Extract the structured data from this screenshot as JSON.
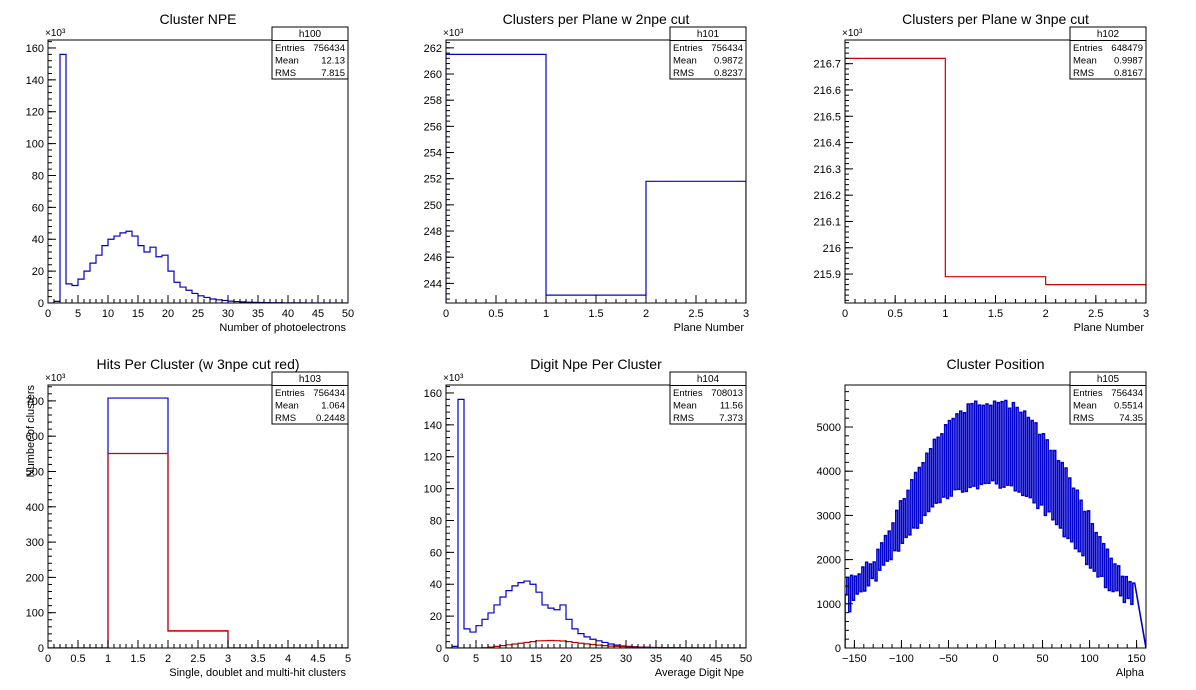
{
  "chart_data": [
    {
      "type": "bar",
      "title": "Cluster NPE",
      "xlabel": "Number of photoelectrons",
      "ylabel": "",
      "exponent_label": "×10³",
      "xlim": [
        0,
        50
      ],
      "ylim": [
        0,
        165000
      ],
      "xticks": [
        0,
        5,
        10,
        15,
        20,
        25,
        30,
        35,
        40,
        45,
        50
      ],
      "xtick_labels": [
        "0",
        "5",
        "10",
        "15",
        "20",
        "25",
        "30",
        "35",
        "40",
        "45",
        "50"
      ],
      "yticks": [
        0,
        20000,
        40000,
        60000,
        80000,
        100000,
        120000,
        140000,
        160000
      ],
      "ytick_labels": [
        "0",
        "20",
        "40",
        "60",
        "80",
        "100",
        "120",
        "140",
        "160"
      ],
      "stats": {
        "name": "h100",
        "rows": [
          [
            "Entries",
            "756434"
          ],
          [
            "Mean",
            "12.13"
          ],
          [
            "RMS",
            "7.815"
          ]
        ]
      },
      "bin_edges": [
        0,
        1,
        2,
        3,
        4,
        5,
        6,
        7,
        8,
        9,
        10,
        11,
        12,
        13,
        14,
        15,
        16,
        17,
        18,
        19,
        20,
        21,
        22,
        23,
        24,
        25,
        26,
        27,
        28,
        29,
        30,
        31,
        32,
        33,
        34,
        35,
        36,
        37,
        38,
        39,
        40,
        41,
        42,
        43,
        44,
        45,
        46,
        47,
        48,
        49,
        50
      ],
      "series": [
        {
          "color": "#0000cc",
          "values": [
            0,
            1000,
            156000,
            12000,
            11000,
            15000,
            20000,
            25000,
            30000,
            36000,
            40000,
            42000,
            44000,
            45000,
            42000,
            36000,
            32000,
            35000,
            29000,
            30000,
            20000,
            13000,
            10000,
            8000,
            6000,
            4500,
            3500,
            2500,
            2000,
            1600,
            1200,
            900,
            700,
            500,
            400,
            300,
            250,
            200,
            150,
            120,
            100,
            80,
            60,
            50,
            40,
            30,
            20,
            15,
            10,
            5
          ]
        }
      ]
    },
    {
      "type": "bar",
      "title": "Clusters per Plane w 2npe cut",
      "xlabel": "Plane Number",
      "ylabel": "",
      "exponent_label": "×10³",
      "xlim": [
        0,
        3
      ],
      "ylim": [
        242500,
        262600
      ],
      "xticks": [
        0,
        0.5,
        1,
        1.5,
        2,
        2.5,
        3
      ],
      "xtick_labels": [
        "0",
        "0.5",
        "1",
        "1.5",
        "2",
        "2.5",
        "3"
      ],
      "yticks": [
        244000,
        246000,
        248000,
        250000,
        252000,
        254000,
        256000,
        258000,
        260000,
        262000
      ],
      "ytick_labels": [
        "244",
        "246",
        "248",
        "250",
        "252",
        "254",
        "256",
        "258",
        "260",
        "262"
      ],
      "stats": {
        "name": "h101",
        "rows": [
          [
            "Entries",
            "756434"
          ],
          [
            "Mean",
            "0.9872"
          ],
          [
            "RMS",
            "0.8237"
          ]
        ]
      },
      "bin_edges": [
        0,
        1,
        2,
        3
      ],
      "series": [
        {
          "color": "#0000cc",
          "values": [
            261500,
            243100,
            251800
          ]
        }
      ]
    },
    {
      "type": "bar",
      "title": "Clusters per Plane w 3npe cut",
      "xlabel": "Plane Number",
      "ylabel": "",
      "exponent_label": "×10³",
      "xlim": [
        0,
        3
      ],
      "ylim": [
        215790,
        216790
      ],
      "xticks": [
        0,
        0.5,
        1,
        1.5,
        2,
        2.5,
        3
      ],
      "xtick_labels": [
        "0",
        "0.5",
        "1",
        "1.5",
        "2",
        "2.5",
        "3"
      ],
      "yticks": [
        215900,
        216000,
        216100,
        216200,
        216300,
        216400,
        216500,
        216600,
        216700
      ],
      "ytick_labels": [
        "215.9",
        "216",
        "216.1",
        "216.2",
        "216.3",
        "216.4",
        "216.5",
        "216.6",
        "216.7"
      ],
      "stats": {
        "name": "h102",
        "rows": [
          [
            "Entries",
            "648479"
          ],
          [
            "Mean",
            "0.9987"
          ],
          [
            "RMS",
            "0.8167"
          ]
        ]
      },
      "bin_edges": [
        0,
        1,
        2,
        3
      ],
      "series": [
        {
          "color": "#cc0000",
          "values": [
            216720,
            215890,
            215860
          ]
        }
      ]
    },
    {
      "type": "bar",
      "title": "Hits Per Cluster (w 3npe cut red)",
      "xlabel": "Single, doublet and multi-hit clusters",
      "ylabel": "Number of clusters",
      "exponent_label": "×10³",
      "xlim": [
        0,
        5
      ],
      "ylim": [
        0,
        745000
      ],
      "xticks": [
        0,
        0.5,
        1,
        1.5,
        2,
        2.5,
        3,
        3.5,
        4,
        4.5,
        5
      ],
      "xtick_labels": [
        "0",
        "0.5",
        "1",
        "1.5",
        "2",
        "2.5",
        "3",
        "3.5",
        "4",
        "4.5",
        "5"
      ],
      "yticks": [
        0,
        100000,
        200000,
        300000,
        400000,
        500000,
        600000,
        700000
      ],
      "ytick_labels": [
        "0",
        "100",
        "200",
        "300",
        "400",
        "500",
        "600",
        "700"
      ],
      "stats": {
        "name": "h103",
        "rows": [
          [
            "Entries",
            "756434"
          ],
          [
            "Mean",
            "1.064"
          ],
          [
            "RMS",
            "0.2448"
          ]
        ]
      },
      "bin_edges": [
        0,
        1,
        2,
        3,
        4,
        5
      ],
      "series": [
        {
          "color": "#0000cc",
          "values": [
            0,
            708000,
            48000,
            0,
            0
          ]
        },
        {
          "color": "#cc0000",
          "values": [
            0,
            551000,
            49000,
            0,
            0
          ]
        }
      ]
    },
    {
      "type": "bar",
      "title": "Digit Npe Per Cluster",
      "xlabel": "Average Digit Npe",
      "ylabel": "",
      "exponent_label": "×10³",
      "xlim": [
        0,
        50
      ],
      "ylim": [
        0,
        165000
      ],
      "xticks": [
        0,
        5,
        10,
        15,
        20,
        25,
        30,
        35,
        40,
        45,
        50
      ],
      "xtick_labels": [
        "0",
        "5",
        "10",
        "15",
        "20",
        "25",
        "30",
        "35",
        "40",
        "45",
        "50"
      ],
      "yticks": [
        0,
        20000,
        40000,
        60000,
        80000,
        100000,
        120000,
        140000,
        160000
      ],
      "ytick_labels": [
        "0",
        "20",
        "40",
        "60",
        "80",
        "100",
        "120",
        "140",
        "160"
      ],
      "stats": {
        "name": "h104",
        "rows": [
          [
            "Entries",
            "708013"
          ],
          [
            "Mean",
            "11.56"
          ],
          [
            "RMS",
            "7.373"
          ]
        ]
      },
      "bin_edges": [
        0,
        1,
        2,
        3,
        4,
        5,
        6,
        7,
        8,
        9,
        10,
        11,
        12,
        13,
        14,
        15,
        16,
        17,
        18,
        19,
        20,
        21,
        22,
        23,
        24,
        25,
        26,
        27,
        28,
        29,
        30,
        31,
        32,
        33,
        34,
        35,
        36,
        37,
        38,
        39,
        40,
        41,
        42,
        43,
        44,
        45,
        46,
        47,
        48,
        49,
        50
      ],
      "series": [
        {
          "color": "#0000cc",
          "values": [
            0,
            1000,
            156000,
            12000,
            10000,
            14000,
            18000,
            22000,
            27000,
            32000,
            36000,
            39000,
            41000,
            42000,
            40000,
            35000,
            27000,
            25000,
            24000,
            27000,
            18000,
            12000,
            9000,
            7000,
            5500,
            4500,
            3500,
            2500,
            1800,
            1300,
            1000,
            800,
            600,
            450,
            350,
            280,
            220,
            170,
            130,
            100,
            80,
            60,
            45,
            35,
            25,
            18,
            12,
            8,
            5,
            3
          ]
        },
        {
          "color": "#cc0000",
          "values": [
            0,
            0,
            0,
            0,
            0,
            0,
            200,
            600,
            1000,
            1500,
            2000,
            2500,
            3000,
            3500,
            4000,
            4500,
            4600,
            4700,
            4600,
            4400,
            4000,
            3500,
            3000,
            2600,
            2200,
            1800,
            1500,
            1200,
            1000,
            850,
            700,
            600,
            500,
            420,
            350,
            300,
            250,
            210,
            180,
            150,
            120,
            100,
            80,
            60,
            45,
            35,
            25,
            18,
            12,
            8
          ]
        }
      ]
    },
    {
      "type": "bar",
      "title": "Cluster Position",
      "xlabel": "Alpha",
      "ylabel": "",
      "exponent_label": "",
      "xlim": [
        -160,
        160
      ],
      "ylim": [
        0,
        5950
      ],
      "xticks": [
        -150,
        -100,
        -50,
        0,
        50,
        100,
        150
      ],
      "xtick_labels": [
        "−150",
        "−100",
        "−50",
        "0",
        "50",
        "100",
        "150"
      ],
      "yticks": [
        0,
        1000,
        2000,
        3000,
        4000,
        5000
      ],
      "ytick_labels": [
        "0",
        "1000",
        "2000",
        "3000",
        "4000",
        "5000"
      ],
      "stats": {
        "name": "h105",
        "rows": [
          [
            "Entries",
            "756434"
          ],
          [
            "Mean",
            "0.5514"
          ],
          [
            "RMS",
            "74.35"
          ]
        ]
      },
      "bin_edges": [
        -160,
        -158,
        -156,
        -154,
        -152,
        -150,
        -148,
        -146,
        -144,
        -142,
        -140,
        -138,
        -136,
        -134,
        -132,
        -130,
        -128,
        -126,
        -124,
        -122,
        -120,
        -118,
        -116,
        -114,
        -112,
        -110,
        -108,
        -106,
        -104,
        -102,
        -100,
        -98,
        -96,
        -94,
        -92,
        -90,
        -88,
        -86,
        -84,
        -82,
        -80,
        -78,
        -76,
        -74,
        -72,
        -70,
        -68,
        -66,
        -64,
        -62,
        -60,
        -58,
        -56,
        -54,
        -52,
        -50,
        -48,
        -46,
        -44,
        -42,
        -40,
        -38,
        -36,
        -34,
        -32,
        -30,
        -28,
        -26,
        -24,
        -22,
        -20,
        -18,
        -16,
        -14,
        -12,
        -10,
        -8,
        -6,
        -4,
        -2,
        0,
        2,
        4,
        6,
        8,
        10,
        12,
        14,
        16,
        18,
        20,
        22,
        24,
        26,
        28,
        30,
        32,
        34,
        36,
        38,
        40,
        42,
        44,
        46,
        48,
        50,
        52,
        54,
        56,
        58,
        60,
        62,
        64,
        66,
        68,
        70,
        72,
        74,
        76,
        78,
        80,
        82,
        84,
        86,
        88,
        90,
        92,
        94,
        96,
        98,
        100,
        102,
        104,
        106,
        108,
        110,
        112,
        114,
        116,
        118,
        120,
        122,
        124,
        126,
        128,
        130,
        132,
        134,
        136,
        138,
        140,
        142,
        144,
        146,
        148,
        150,
        152,
        154,
        156,
        158,
        160
      ],
      "series": [
        {
          "color": "#0000cc",
          "values": [
            1210,
            1596,
            820,
            1641,
            1081,
            1624,
            1223,
            1672,
            1277,
            1831,
            1290,
            1940,
            1409,
            1900,
            1577,
            1945,
            1519,
            2231,
            1763,
            2378,
            1879,
            2541,
            1966,
            2642,
            2003,
            2828,
            2205,
            3113,
            2197,
            3327,
            2370,
            3376,
            2504,
            3565,
            2560,
            3805,
            2718,
            3968,
            2713,
            4081,
            2826,
            4191,
            3002,
            4406,
            3090,
            4508,
            3197,
            4719,
            3280,
            4768,
            3294,
            4842,
            3417,
            5049,
            3383,
            5142,
            3439,
            5192,
            3583,
            5296,
            3589,
            5359,
            3531,
            5322,
            3544,
            5520,
            3636,
            5528,
            3662,
            5580,
            3606,
            5494,
            3704,
            5487,
            3726,
            5518,
            3729,
            5488,
            3789,
            5581,
            3717,
            5549,
            3620,
            5574,
            3642,
            5597,
            3685,
            5424,
            3674,
            5550,
            3558,
            5439,
            3529,
            5330,
            3454,
            5358,
            3435,
            5213,
            3404,
            5145,
            3288,
            5093,
            3161,
            4830,
            3238,
            4845,
            3002,
            4707,
            3083,
            4466,
            2904,
            4466,
            2794,
            4235,
            2717,
            4192,
            2520,
            4072,
            2482,
            3845,
            2405,
            3612,
            2250,
            3567,
            2181,
            3341,
            2091,
            3088,
            1894,
            3100,
            1812,
            2809,
            1739,
            2610,
            1610,
            2516,
            1623,
            2361,
            1370,
            2232,
            1301,
            2026,
            1280,
            1898,
            1300,
            1858,
            1183,
            1619,
            1033,
            1613,
            1125,
            1500,
            990,
            1467
          ]
        }
      ]
    }
  ]
}
